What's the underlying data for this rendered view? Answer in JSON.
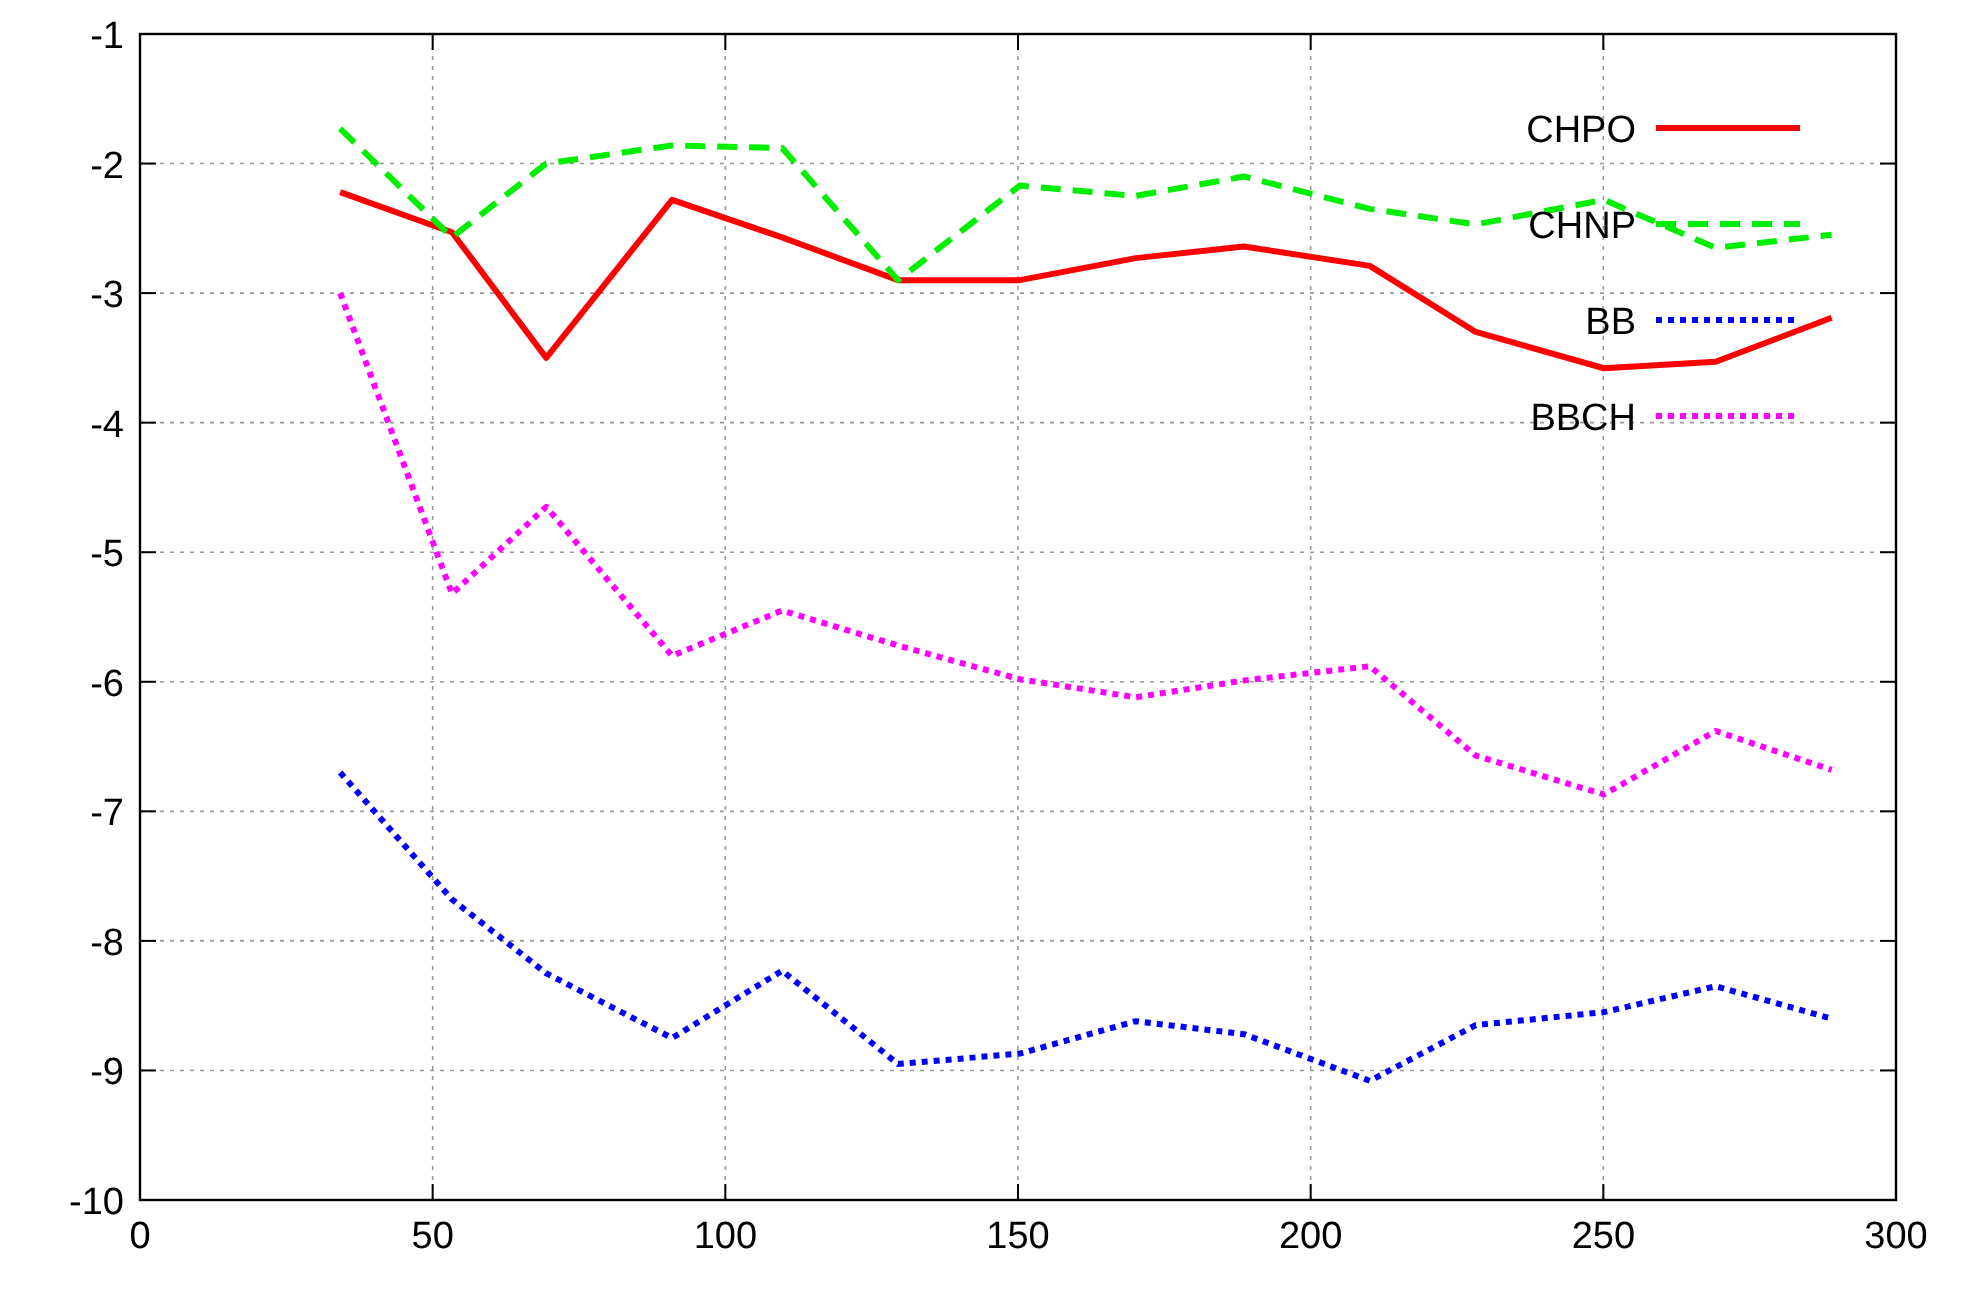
{
  "chart_data": {
    "type": "line",
    "x": [
      34.2,
      53.3,
      69.4,
      90.9,
      109.7,
      129.5,
      150.3,
      170.1,
      188.6,
      210.1,
      228.2,
      250.1,
      269.2,
      289.0
    ],
    "xlim": [
      0,
      300
    ],
    "xticks": [
      0,
      50,
      100,
      150,
      200,
      250,
      300
    ],
    "ylim": [
      -10,
      -1
    ],
    "yticks": [
      -10,
      -9,
      -8,
      -7,
      -6,
      -5,
      -4,
      -3,
      -2,
      -1
    ],
    "grid": true,
    "legend": "top right",
    "marker": "none",
    "series": [
      {
        "name": "CHPO",
        "color": "#ff0000",
        "line_style": "solid",
        "values": [
          -2.22,
          -2.53,
          -3.5,
          -2.28,
          -2.57,
          -2.9,
          -2.9,
          -2.73,
          -2.64,
          -2.79,
          -3.3,
          -3.58,
          -3.53,
          -3.19
        ]
      },
      {
        "name": "CHNP",
        "color": "#00ee00",
        "line_style": "dashed",
        "values": [
          -1.73,
          -2.57,
          -2.0,
          -1.86,
          -1.88,
          -2.9,
          -2.17,
          -2.25,
          -2.1,
          -2.35,
          -2.47,
          -2.28,
          -2.65,
          -2.55
        ]
      },
      {
        "name": "BB",
        "color": "#0000ff",
        "line_style": "dotted",
        "values": [
          -6.7,
          -7.68,
          -8.25,
          -8.75,
          -8.23,
          -8.95,
          -8.87,
          -8.62,
          -8.72,
          -9.08,
          -8.65,
          -8.55,
          -8.35,
          -8.6
        ]
      },
      {
        "name": "BBCH",
        "color": "#ff00ff",
        "line_style": "dotted",
        "values": [
          -3.0,
          -5.32,
          -4.65,
          -5.8,
          -5.45,
          -5.72,
          -5.98,
          -6.12,
          -5.99,
          -5.88,
          -6.57,
          -6.87,
          -6.38,
          -6.68
        ]
      }
    ]
  }
}
